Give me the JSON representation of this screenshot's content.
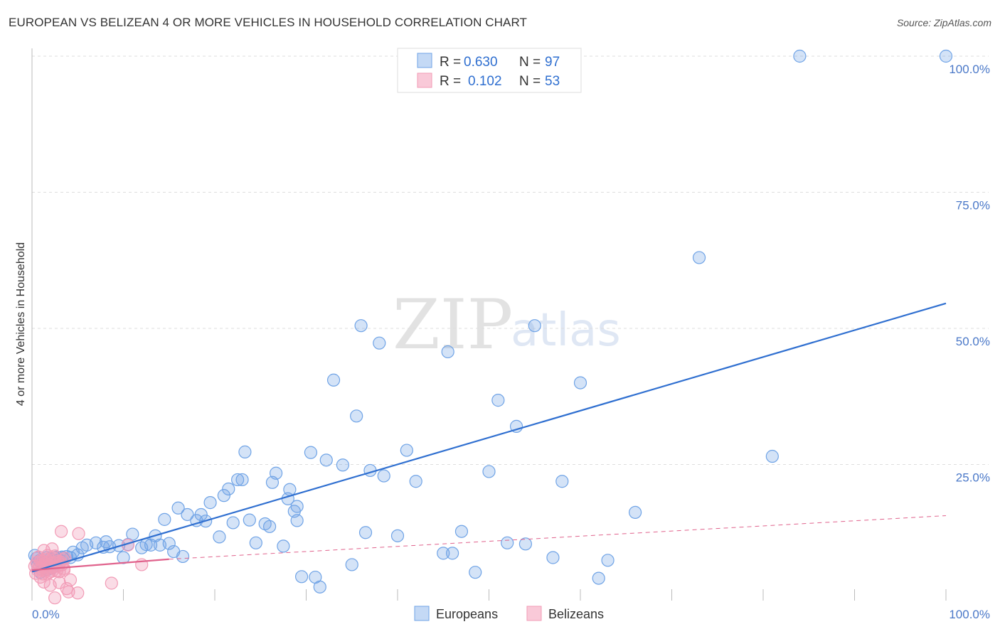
{
  "title": "EUROPEAN VS BELIZEAN 4 OR MORE VEHICLES IN HOUSEHOLD CORRELATION CHART",
  "source": "Source: ZipAtlas.com",
  "watermark": {
    "zip": "ZIP",
    "atlas": "atlas"
  },
  "colors": {
    "european": "#6fa3e6",
    "european_line": "#2f6fd0",
    "belizean": "#f29bb6",
    "belizean_line": "#e0628c",
    "tick": "#4a78c8"
  },
  "legend": {
    "r_label": "R = ",
    "n_label": "N = ",
    "european": {
      "r": "0.630",
      "n": "97"
    },
    "belizean": {
      "r": "0.102",
      "n": "53"
    }
  },
  "bottom_legend": {
    "european": "Europeans",
    "belizean": "Belizeans"
  },
  "chart_data": {
    "type": "scatter",
    "title": "EUROPEAN VS BELIZEAN 4 OR MORE VEHICLES IN HOUSEHOLD CORRELATION CHART",
    "xlabel": "",
    "ylabel": "4 or more Vehicles in Household",
    "xlim": [
      0,
      100
    ],
    "ylim": [
      0,
      100
    ],
    "x_tick_labels": [
      "0.0%",
      "100.0%"
    ],
    "y_ticks": [
      25,
      50,
      75,
      100
    ],
    "y_tick_labels": [
      "25.0%",
      "50.0%",
      "75.0%",
      "100.0%"
    ],
    "series": [
      {
        "name": "Europeans",
        "points": [
          [
            0.3,
            8.3
          ],
          [
            0.5,
            7.8
          ],
          [
            0.6,
            6.5
          ],
          [
            0.8,
            7.3
          ],
          [
            0.9,
            5.2
          ],
          [
            1.0,
            7.5
          ],
          [
            1.2,
            6.9
          ],
          [
            1.3,
            7.1
          ],
          [
            1.4,
            6.3
          ],
          [
            1.6,
            7.9
          ],
          [
            1.7,
            5.7
          ],
          [
            1.8,
            7.1
          ],
          [
            2.0,
            7.7
          ],
          [
            2.1,
            6.8
          ],
          [
            2.2,
            6.0
          ],
          [
            2.3,
            7.4
          ],
          [
            2.5,
            7.9
          ],
          [
            2.6,
            6.9
          ],
          [
            2.7,
            8.0
          ],
          [
            3.0,
            7.5
          ],
          [
            3.3,
            8.0
          ],
          [
            3.4,
            7.8
          ],
          [
            3.8,
            8.1
          ],
          [
            4.2,
            7.9
          ],
          [
            4.5,
            8.9
          ],
          [
            5.0,
            8.4
          ],
          [
            5.5,
            9.7
          ],
          [
            6.0,
            10.2
          ],
          [
            7.0,
            10.6
          ],
          [
            7.8,
            9.8
          ],
          [
            8.1,
            10.8
          ],
          [
            8.5,
            9.9
          ],
          [
            9.5,
            10.1
          ],
          [
            10.0,
            7.9
          ],
          [
            10.5,
            10.3
          ],
          [
            11.0,
            12.2
          ],
          [
            12.0,
            9.7
          ],
          [
            12.5,
            10.3
          ],
          [
            13.0,
            10.2
          ],
          [
            13.5,
            11.9
          ],
          [
            14.0,
            10.2
          ],
          [
            14.5,
            14.9
          ],
          [
            15.0,
            10.5
          ],
          [
            15.5,
            9.0
          ],
          [
            16.0,
            17.0
          ],
          [
            16.5,
            8.1
          ],
          [
            17.0,
            15.8
          ],
          [
            18.0,
            14.7
          ],
          [
            18.5,
            15.8
          ],
          [
            19.0,
            14.6
          ],
          [
            19.5,
            18.0
          ],
          [
            20.5,
            11.7
          ],
          [
            21.0,
            19.3
          ],
          [
            21.5,
            20.5
          ],
          [
            22.0,
            14.3
          ],
          [
            22.5,
            22.2
          ],
          [
            23.0,
            22.2
          ],
          [
            23.3,
            27.3
          ],
          [
            23.8,
            14.8
          ],
          [
            24.5,
            10.6
          ],
          [
            25.5,
            14.1
          ],
          [
            26.0,
            13.6
          ],
          [
            26.3,
            21.7
          ],
          [
            26.7,
            23.4
          ],
          [
            27.5,
            10.0
          ],
          [
            28.0,
            18.7
          ],
          [
            28.2,
            20.4
          ],
          [
            28.7,
            16.4
          ],
          [
            29.0,
            17.3
          ],
          [
            29.0,
            14.7
          ],
          [
            29.5,
            4.4
          ],
          [
            30.5,
            27.2
          ],
          [
            31.0,
            4.3
          ],
          [
            31.5,
            2.5
          ],
          [
            32.2,
            25.8
          ],
          [
            33.0,
            40.5
          ],
          [
            34.0,
            24.9
          ],
          [
            35.0,
            6.6
          ],
          [
            35.5,
            33.9
          ],
          [
            36.0,
            50.5
          ],
          [
            36.5,
            12.5
          ],
          [
            37.0,
            23.9
          ],
          [
            38.0,
            47.3
          ],
          [
            38.5,
            22.9
          ],
          [
            40.0,
            11.9
          ],
          [
            41.0,
            27.6
          ],
          [
            42.0,
            21.9
          ],
          [
            45.0,
            8.7
          ],
          [
            45.5,
            45.7
          ],
          [
            46.0,
            8.7
          ],
          [
            47.0,
            12.7
          ],
          [
            48.5,
            5.2
          ],
          [
            50.0,
            23.7
          ],
          [
            51.0,
            36.8
          ],
          [
            52.0,
            10.6
          ],
          [
            53.0,
            32.0
          ],
          [
            54.0,
            10.4
          ],
          [
            55.0,
            50.5
          ],
          [
            57.0,
            7.9
          ],
          [
            58.0,
            21.9
          ],
          [
            60.0,
            40.0
          ],
          [
            62.0,
            4.1
          ],
          [
            63.0,
            7.4
          ],
          [
            66.0,
            16.2
          ],
          [
            73.0,
            63.0
          ],
          [
            81.0,
            26.5
          ],
          [
            84.0,
            100.0
          ],
          [
            100.0,
            100.0
          ]
        ]
      },
      {
        "name": "Belizeans",
        "points": [
          [
            0.3,
            6.3
          ],
          [
            0.4,
            5.0
          ],
          [
            0.5,
            7.0
          ],
          [
            0.6,
            5.6
          ],
          [
            0.7,
            8.0
          ],
          [
            0.8,
            6.5
          ],
          [
            0.9,
            4.3
          ],
          [
            1.0,
            7.4
          ],
          [
            1.0,
            5.8
          ],
          [
            1.1,
            6.2
          ],
          [
            1.2,
            7.2
          ],
          [
            1.2,
            4.9
          ],
          [
            1.3,
            3.4
          ],
          [
            1.3,
            9.2
          ],
          [
            1.4,
            6.8
          ],
          [
            1.5,
            5.6
          ],
          [
            1.5,
            7.6
          ],
          [
            1.6,
            6.3
          ],
          [
            1.7,
            4.9
          ],
          [
            1.7,
            8.3
          ],
          [
            1.8,
            6.6
          ],
          [
            1.9,
            5.2
          ],
          [
            1.9,
            7.1
          ],
          [
            2.0,
            6.0
          ],
          [
            2.0,
            2.8
          ],
          [
            2.1,
            6.8
          ],
          [
            2.2,
            9.5
          ],
          [
            2.2,
            5.4
          ],
          [
            2.3,
            7.9
          ],
          [
            2.4,
            6.2
          ],
          [
            2.5,
            8.2
          ],
          [
            2.5,
            0.5
          ],
          [
            2.6,
            6.9
          ],
          [
            2.7,
            5.5
          ],
          [
            2.8,
            7.2
          ],
          [
            2.9,
            6.4
          ],
          [
            3.0,
            5.3
          ],
          [
            3.0,
            3.3
          ],
          [
            3.1,
            7.1
          ],
          [
            3.2,
            12.7
          ],
          [
            3.3,
            6.6
          ],
          [
            3.4,
            7.5
          ],
          [
            3.5,
            5.6
          ],
          [
            3.5,
            5.9
          ],
          [
            3.6,
            7.8
          ],
          [
            3.8,
            2.2
          ],
          [
            4.0,
            1.6
          ],
          [
            4.2,
            3.8
          ],
          [
            5.0,
            1.4
          ],
          [
            5.1,
            12.3
          ],
          [
            8.7,
            3.2
          ],
          [
            10.5,
            10.2
          ],
          [
            12.0,
            6.6
          ]
        ]
      }
    ],
    "trend_lines": [
      {
        "name": "Europeans",
        "from": [
          0,
          5.3
        ],
        "to": [
          100,
          54.6
        ]
      },
      {
        "name": "Belizeans",
        "solid_from": [
          0,
          5.6
        ],
        "solid_to": [
          15,
          7.6
        ],
        "dashed_to": [
          100,
          15.6
        ]
      }
    ],
    "legend_position": "top-center",
    "grid": true
  }
}
